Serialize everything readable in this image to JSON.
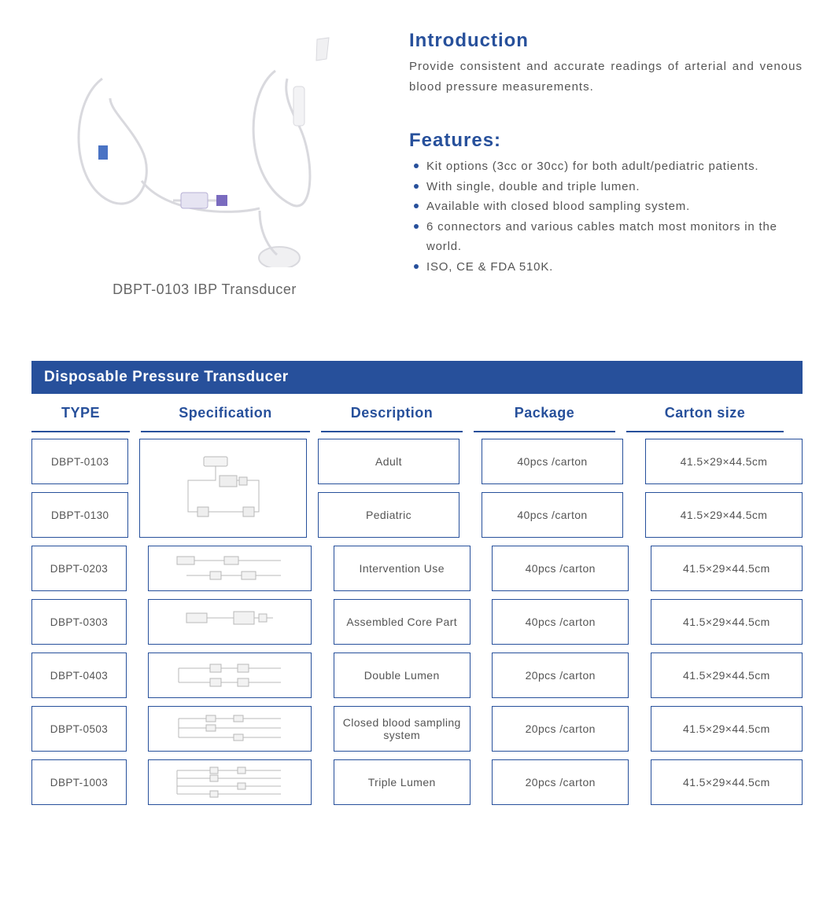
{
  "colors": {
    "brand_blue": "#27509b",
    "header_bar": "#27509b",
    "header_text": "#27509b",
    "cell_border": "#27509b",
    "bullet": "#27509b",
    "body_text": "#555555",
    "caption_text": "#666666"
  },
  "product": {
    "caption": "DBPT-0103 IBP Transducer"
  },
  "intro": {
    "title": "Introduction",
    "text": "Provide consistent and accurate readings of arterial and venous blood pressure measurements."
  },
  "features": {
    "title": "Features:",
    "items": [
      "Kit options (3cc or 30cc) for both adult/pediatric patients.",
      "With single, double and triple lumen.",
      "Available with closed blood sampling system.",
      "6 connectors and various cables match most monitors in the world.",
      "ISO, CE & FDA 510K."
    ]
  },
  "table": {
    "title": "Disposable Pressure Transducer",
    "columns": {
      "type": "TYPE",
      "spec": "Specification",
      "desc": "Description",
      "pack": "Package",
      "carton": "Carton  size"
    },
    "grouped_rows": [
      {
        "type": "DBPT-0103",
        "desc": "Adult",
        "pack": "40pcs /carton",
        "carton": "41.5×29×44.5cm"
      },
      {
        "type": "DBPT-0130",
        "desc": "Pediatric",
        "pack": "40pcs /carton",
        "carton": "41.5×29×44.5cm"
      }
    ],
    "rows": [
      {
        "type": "DBPT-0203",
        "desc": "Intervention Use",
        "pack": "40pcs /carton",
        "carton": "41.5×29×44.5cm"
      },
      {
        "type": "DBPT-0303",
        "desc": "Assembled Core Part",
        "pack": "40pcs /carton",
        "carton": "41.5×29×44.5cm"
      },
      {
        "type": "DBPT-0403",
        "desc": "Double Lumen",
        "pack": "20pcs /carton",
        "carton": "41.5×29×44.5cm"
      },
      {
        "type": "DBPT-0503",
        "desc": "Closed blood sampling system",
        "pack": "20pcs /carton",
        "carton": "41.5×29×44.5cm"
      },
      {
        "type": "DBPT-1003",
        "desc": "Triple Lumen",
        "pack": "20pcs /carton",
        "carton": "41.5×29×44.5cm"
      }
    ]
  }
}
